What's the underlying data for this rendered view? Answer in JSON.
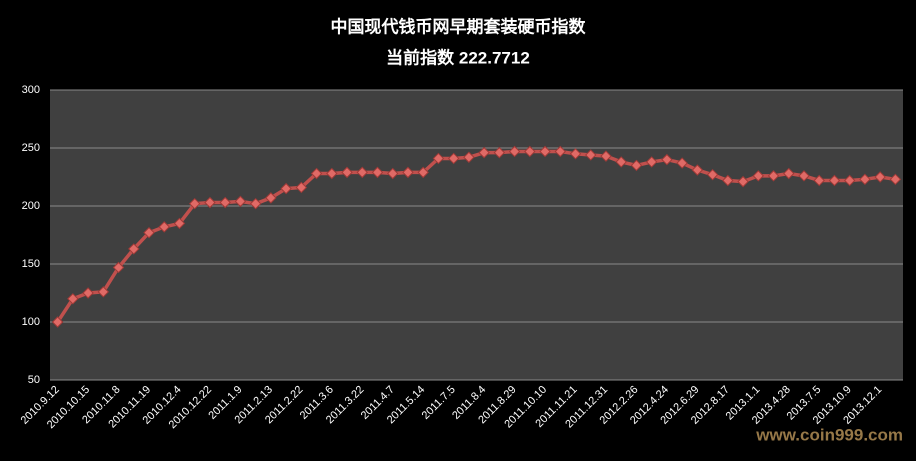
{
  "chart_data": {
    "type": "line",
    "title": "中国现代钱币网早期套装硬币指数",
    "subtitle": "当前指数 222.7712",
    "watermark": "www.coin999.com",
    "categories": [
      "2010.9.12",
      null,
      "2010.10.15",
      null,
      "2010.11.8",
      null,
      "2010.11.19",
      null,
      "2010.12.4",
      null,
      "2010.12.22",
      null,
      "2011.1.9",
      null,
      "2011.2.13",
      null,
      "2011.2.22",
      null,
      "2011.3.6",
      null,
      "2011.3.22",
      null,
      "2011.4.7",
      null,
      "2011.5.14",
      null,
      "2011.7.5",
      null,
      "2011.8.4",
      null,
      "2011.8.29",
      null,
      "2011.10.10",
      null,
      "2011.11.21",
      null,
      "2011.12.31",
      null,
      "2012.2.26",
      null,
      "2012.4.24",
      null,
      "2012.6.29",
      null,
      "2012.8.17",
      null,
      "2013.1.1",
      null,
      "2013.4.28",
      null,
      "2013.7.5",
      null,
      "2013.10.9",
      null,
      "2013.12.1",
      null
    ],
    "values": [
      100,
      120,
      125,
      126,
      147,
      163,
      177,
      182,
      185,
      202,
      203,
      203,
      204,
      202,
      207,
      215,
      216,
      228,
      228,
      229,
      229,
      229,
      228,
      229,
      229,
      241,
      241,
      242,
      246,
      246,
      247,
      247,
      247,
      247,
      245,
      244,
      243,
      238,
      235,
      238,
      240,
      237,
      231,
      227,
      222,
      221,
      226,
      226,
      228,
      226,
      222,
      222,
      222,
      223,
      225,
      223
    ],
    "color": "#c0504d",
    "ylim": [
      50,
      300
    ],
    "yticks": [
      50,
      100,
      150,
      200,
      250,
      300
    ],
    "grid": true
  }
}
